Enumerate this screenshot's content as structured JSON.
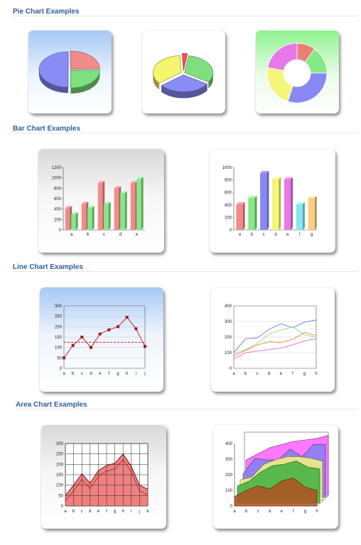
{
  "sections": {
    "pie": "Pie Chart Examples",
    "bar": "Bar Chart Examples",
    "line": "Line Chart Examples",
    "area": "Area Chart Examples"
  },
  "chart_data": [
    {
      "type": "pie",
      "id": "pie1",
      "variant": "3d-exploded",
      "values": [
        25,
        25,
        50
      ],
      "colors": [
        "#f28b8b",
        "#7ee07e",
        "#8a8cf5"
      ]
    },
    {
      "type": "pie",
      "id": "pie2",
      "variant": "3d-exploded",
      "values": [
        3,
        32,
        30,
        35
      ],
      "colors": [
        "#ff4d4d",
        "#7ee07e",
        "#8a8cf5",
        "#f5f56e"
      ]
    },
    {
      "type": "pie",
      "id": "pie3",
      "variant": "donut",
      "values": [
        10,
        15,
        30,
        23,
        22
      ],
      "colors": [
        "#e88078",
        "#86e886",
        "#8888f5",
        "#f5f57a",
        "#e878e8"
      ]
    },
    {
      "type": "bar",
      "id": "bar1",
      "categories": [
        "a",
        "b",
        "c",
        "d",
        "e"
      ],
      "series": [
        {
          "values": [
            420,
            500,
            900,
            800,
            900
          ],
          "color": "#f28b8b"
        },
        {
          "values": [
            300,
            420,
            500,
            700,
            980
          ],
          "color": "#86e886"
        }
      ],
      "ylim": [
        0,
        1200
      ],
      "yticks": [
        0,
        200,
        400,
        600,
        800,
        1000,
        1200
      ]
    },
    {
      "type": "bar",
      "id": "bar2",
      "categories": [
        "a",
        "b",
        "c",
        "d",
        "e",
        "f",
        "g"
      ],
      "values": [
        410,
        510,
        910,
        810,
        810,
        410,
        510
      ],
      "colors": [
        "#f28b8b",
        "#86e886",
        "#8888f5",
        "#f5f57a",
        "#e878e8",
        "#86e8f0",
        "#f5d080"
      ],
      "ylim": [
        0,
        1000
      ],
      "yticks": [
        0,
        200,
        400,
        600,
        800,
        1000
      ]
    },
    {
      "type": "line",
      "id": "line1",
      "categories": [
        "a",
        "b",
        "c",
        "d",
        "e",
        "f",
        "g",
        "h",
        "i",
        "j"
      ],
      "values": [
        50,
        110,
        150,
        100,
        165,
        185,
        200,
        245,
        190,
        105
      ],
      "reference_line": 125,
      "color": "#cc2222",
      "ylim": [
        0,
        300
      ],
      "yticks": [
        0,
        50,
        100,
        150,
        200,
        250,
        300
      ]
    },
    {
      "type": "line",
      "id": "line2",
      "categories": [
        "a",
        "b",
        "c",
        "d",
        "e",
        "f",
        "g",
        "h"
      ],
      "series": [
        {
          "values": [
            100,
            190,
            195,
            250,
            285,
            260,
            295,
            310
          ],
          "color": "#8080f0"
        },
        {
          "values": [
            95,
            120,
            160,
            220,
            245,
            265,
            215,
            200
          ],
          "color": "#90e890"
        },
        {
          "values": [
            80,
            115,
            150,
            170,
            165,
            185,
            230,
            210
          ],
          "color": "#f08a50"
        },
        {
          "values": [
            60,
            100,
            110,
            120,
            130,
            150,
            175,
            190
          ],
          "color": "#f07ad0"
        }
      ],
      "ylim": [
        0,
        400
      ],
      "yticks": [
        0,
        100,
        200,
        300,
        400
      ]
    },
    {
      "type": "area",
      "id": "area1",
      "categories": [
        "a",
        "b",
        "c",
        "d",
        "e",
        "f",
        "g",
        "h",
        "i",
        "j",
        "k"
      ],
      "values": [
        50,
        100,
        155,
        110,
        170,
        195,
        205,
        250,
        190,
        100,
        80
      ],
      "color": "#f08080",
      "ylim": [
        0,
        300
      ],
      "yticks": [
        0,
        50,
        100,
        150,
        200,
        250,
        300
      ]
    },
    {
      "type": "area",
      "id": "area2",
      "variant": "3d-stacked",
      "categories": [
        "a",
        "b",
        "c",
        "d",
        "e",
        "f",
        "g",
        "h"
      ],
      "series": [
        {
          "values": [
            220,
            260,
            300,
            320,
            340,
            350,
            360,
            380
          ],
          "color": "#ff60ff"
        },
        {
          "values": [
            150,
            250,
            240,
            240,
            310,
            260,
            340,
            340
          ],
          "color": "#8080f0"
        },
        {
          "values": [
            130,
            150,
            230,
            260,
            280,
            280,
            270,
            250
          ],
          "color": "#f5f57a"
        },
        {
          "values": [
            110,
            140,
            200,
            240,
            250,
            270,
            230,
            220
          ],
          "color": "#40b040"
        },
        {
          "values": [
            60,
            100,
            130,
            110,
            160,
            180,
            120,
            100
          ],
          "color": "#b05020"
        }
      ],
      "ylim": [
        0,
        400
      ],
      "yticks": [
        0,
        100,
        200,
        300,
        400
      ]
    }
  ]
}
